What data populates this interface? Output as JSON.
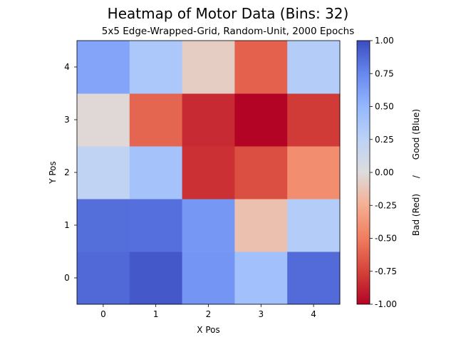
{
  "chart_data": {
    "type": "heatmap",
    "title": "Heatmap of Motor Data (Bins: 32)",
    "subtitle": "5x5 Edge-Wrapped-Grid, Random-Unit, 2000 Epochs",
    "xlabel": "X Pos",
    "ylabel": "Y Pos",
    "x_ticks": [
      "0",
      "1",
      "2",
      "3",
      "4"
    ],
    "y_ticks": [
      "0",
      "1",
      "2",
      "3",
      "4"
    ],
    "colorbar": {
      "label_bad": "Bad (Red)",
      "separator": "/",
      "label_good": "Good (Blue)",
      "range": [
        -1.0,
        1.0
      ],
      "ticks": [
        "-1.00",
        "-0.75",
        "-0.50",
        "-0.25",
        "0.00",
        "0.25",
        "0.50",
        "0.75",
        "1.00"
      ],
      "colormap": "coolwarm_r"
    },
    "values": [
      [
        0.88,
        0.95,
        0.68,
        0.42,
        0.87
      ],
      [
        0.86,
        0.85,
        0.67,
        -0.15,
        0.3
      ],
      [
        0.22,
        0.4,
        -0.82,
        -0.7,
        -0.42
      ],
      [
        -0.02,
        -0.6,
        -0.85,
        -1.0,
        -0.78
      ],
      [
        0.6,
        0.35,
        -0.08,
        -0.62,
        0.3
      ]
    ]
  }
}
